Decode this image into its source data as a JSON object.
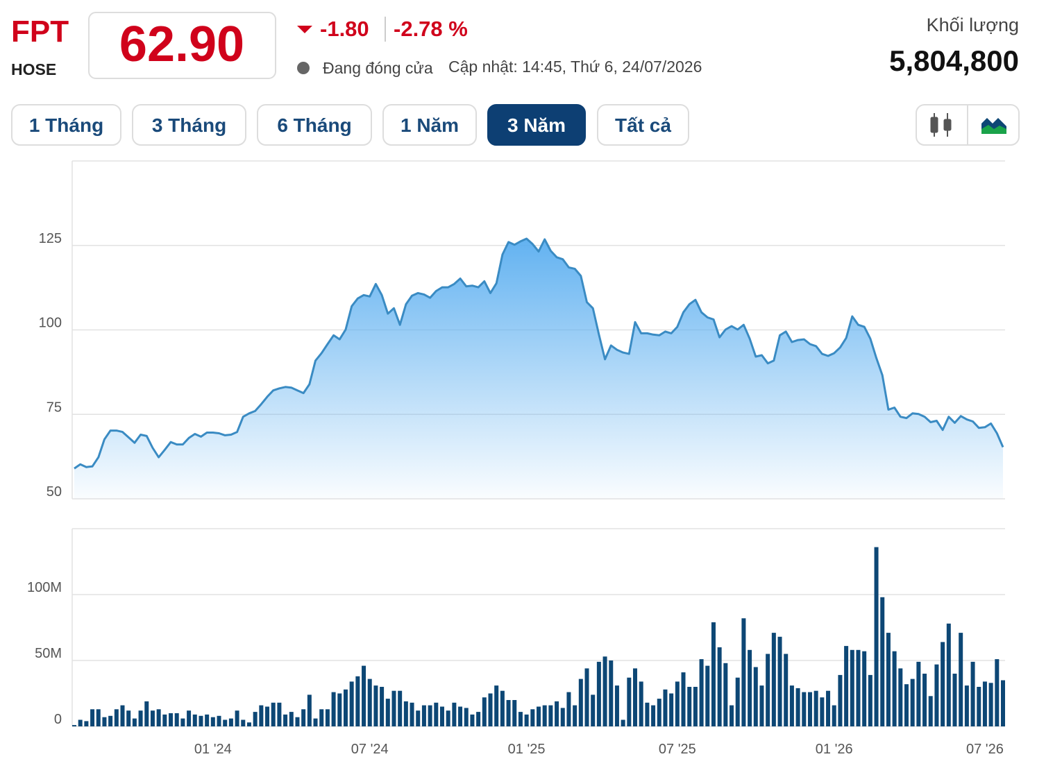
{
  "header": {
    "symbol": "FPT",
    "exchange": "HOSE",
    "price": "62.90",
    "change": "-1.80",
    "change_pct": "-2.78 %",
    "status": "Đang đóng cửa",
    "updated": "Cập nhật: 14:45, Thứ 6, 24/07/2026",
    "volume_label": "Khối lượng",
    "volume": "5,804,800",
    "ranges": [
      "1 Tháng",
      "3 Tháng",
      "6 Tháng",
      "1 Năm",
      "3 Năm",
      "Tất cả"
    ],
    "active_range": 4
  },
  "chart_data": [
    {
      "type": "area",
      "color": "#3a8bc3",
      "values": [
        59,
        60.2,
        59.4,
        59.6,
        62.3,
        67.6,
        70.2,
        70.2,
        69.8,
        68.2,
        66.6,
        69,
        68.6,
        65.1,
        62.3,
        64.5,
        66.8,
        66.1,
        66.1,
        68,
        69.2,
        68.4,
        69.6,
        69.6,
        69.4,
        68.8,
        69,
        69.8,
        74.3,
        75.3,
        76,
        78,
        80.2,
        82.1,
        82.7,
        83.1,
        82.9,
        82.1,
        81.3,
        83.9,
        90.9,
        93.1,
        95.8,
        98.4,
        97.2,
        100.1,
        107,
        109.3,
        110.3,
        109.9,
        113.6,
        110.3,
        104.8,
        106.4,
        101.5,
        107.6,
        110.1,
        110.9,
        110.5,
        109.5,
        111.5,
        112.6,
        112.6,
        113.6,
        115.2,
        112.9,
        113.1,
        112.6,
        114.4,
        110.9,
        113.8,
        122.3,
        126,
        125.2,
        126.2,
        127,
        125.4,
        123.2,
        126.8,
        123.4,
        121.5,
        120.9,
        118.5,
        118.1,
        116,
        108.2,
        106.4,
        98.6,
        91.3,
        95.4,
        94.1,
        93.3,
        92.9,
        102.3,
        99,
        99,
        98.6,
        98.4,
        99.5,
        99,
        100.9,
        105.2,
        107.6,
        108.9,
        105.2,
        103.7,
        103.1,
        97.8,
        100.1,
        101.1,
        100.1,
        101.5,
        97.4,
        92.1,
        92.5,
        90.1,
        90.9,
        98.4,
        99.5,
        96.4,
        97,
        97.2,
        95.8,
        95.2,
        92.9,
        92.3,
        93.1,
        94.8,
        97.6,
        104,
        101.5,
        100.9,
        97.4,
        91.7,
        86.6,
        76.4,
        77,
        74.3,
        73.9,
        75.3,
        75.1,
        74.3,
        72.7,
        73.1,
        70.4,
        74.3,
        72.5,
        74.5,
        73.5,
        72.9,
        71,
        71.2,
        72.3,
        69.4,
        65.3
      ],
      "ylim": [
        50,
        150
      ],
      "yticks": [
        50,
        75,
        100,
        125
      ],
      "grid": true
    },
    {
      "type": "bar",
      "color": "#0d4775",
      "categories": [
        null,
        null,
        null,
        null,
        null,
        null,
        null,
        null,
        null,
        null,
        null,
        null,
        null,
        null,
        null,
        null,
        null,
        null,
        null,
        null,
        null,
        null,
        null,
        "01 '24",
        null,
        null,
        null,
        null,
        null,
        null,
        null,
        null,
        null,
        null,
        null,
        null,
        null,
        null,
        null,
        null,
        null,
        null,
        null,
        null,
        null,
        null,
        null,
        null,
        null,
        "07 '24",
        null,
        null,
        null,
        null,
        null,
        null,
        null,
        null,
        null,
        null,
        null,
        null,
        null,
        null,
        null,
        null,
        null,
        null,
        null,
        null,
        null,
        null,
        null,
        null,
        null,
        "01 '25",
        null,
        null,
        null,
        null,
        null,
        null,
        null,
        null,
        null,
        null,
        null,
        null,
        null,
        null,
        null,
        null,
        null,
        null,
        null,
        null,
        null,
        null,
        null,
        null,
        "07 '25",
        null,
        null,
        null,
        null,
        null,
        null,
        null,
        null,
        null,
        null,
        null,
        null,
        null,
        null,
        null,
        null,
        null,
        null,
        null,
        null,
        null,
        null,
        null,
        null,
        null,
        "01 '26",
        null,
        null,
        null,
        null,
        null,
        null,
        null,
        null,
        null,
        null,
        null,
        null,
        null,
        null,
        null,
        null,
        null,
        null,
        null,
        null,
        null,
        null,
        null,
        null,
        "07 '26",
        null,
        null,
        null
      ],
      "values": [
        1000000.0,
        5000000.0,
        4000000.0,
        13000000.0,
        13000000.0,
        7000000.0,
        8000000.0,
        13000000.0,
        16000000.0,
        12000000.0,
        6000000.0,
        12000000.0,
        19000000.0,
        12000000.0,
        13000000.0,
        9000000.0,
        10000000.0,
        10000000.0,
        6000000.0,
        12000000.0,
        9000000.0,
        8000000.0,
        9000000.0,
        7000000.0,
        8000000.0,
        5000000.0,
        6000000.0,
        12000000.0,
        5000000.0,
        3000000.0,
        11000000.0,
        16000000.0,
        15000000.0,
        18000000.0,
        18000000.0,
        9000000.0,
        11000000.0,
        7000000.0,
        13000000.0,
        24000000.0,
        6000000.0,
        13000000.0,
        13000000.0,
        26000000.0,
        25000000.0,
        28000000.0,
        34000000.0,
        38000000.0,
        46000000.0,
        36000000.0,
        31000000.0,
        30000000.0,
        21000000.0,
        27000000.0,
        27000000.0,
        19000000.0,
        18000000.0,
        12000000.0,
        16000000.0,
        16000000.0,
        18000000.0,
        15000000.0,
        12000000.0,
        18000000.0,
        15000000.0,
        14000000.0,
        9000000.0,
        11000000.0,
        22000000.0,
        25000000.0,
        31000000.0,
        27000000.0,
        20000000.0,
        20000000.0,
        11000000.0,
        9000000.0,
        13000000.0,
        15000000.0,
        16000000.0,
        16000000.0,
        19000000.0,
        14000000.0,
        26000000.0,
        16000000.0,
        36000000.0,
        44000000.0,
        24000000.0,
        49000000.0,
        53000000.0,
        50000000.0,
        31000000.0,
        5000000.0,
        37000000.0,
        44000000.0,
        34000000.0,
        18000000.0,
        16000000.0,
        21000000.0,
        28000000.0,
        25000000.0,
        34000000.0,
        41000000.0,
        30000000.0,
        30000000.0,
        51000000.0,
        46000000.0,
        79000000.0,
        60000000.0,
        48000000.0,
        16000000.0,
        37000000.0,
        82000000.0,
        58000000.0,
        45000000.0,
        31000000.0,
        55000000.0,
        71000000.0,
        68000000.0,
        55000000.0,
        31000000.0,
        29000000.0,
        26000000.0,
        26000000.0,
        27000000.0,
        22000000.0,
        27000000.0,
        16000000.0,
        39000000.0,
        61000000.0,
        58000000.0,
        58000000.0,
        57000000.0,
        39000000.0,
        136000000.0,
        98000000.0,
        71000000.0,
        57000000.0,
        44000000.0,
        32000000.0,
        36000000.0,
        49000000.0,
        40000000.0,
        23000000.0,
        47000000.0,
        64000000.0,
        78000000.0,
        40000000.0,
        71000000.0,
        31000000.0,
        49000000.0,
        30000000.0,
        34000000.0,
        33000000.0,
        51000000.0,
        35000000.0
      ],
      "ylim": [
        0,
        150000000
      ],
      "yticks": [
        0,
        {
          "value": 50000000,
          "label": "50M"
        },
        {
          "value": 100000000,
          "label": "100M"
        }
      ],
      "grid": true
    }
  ]
}
